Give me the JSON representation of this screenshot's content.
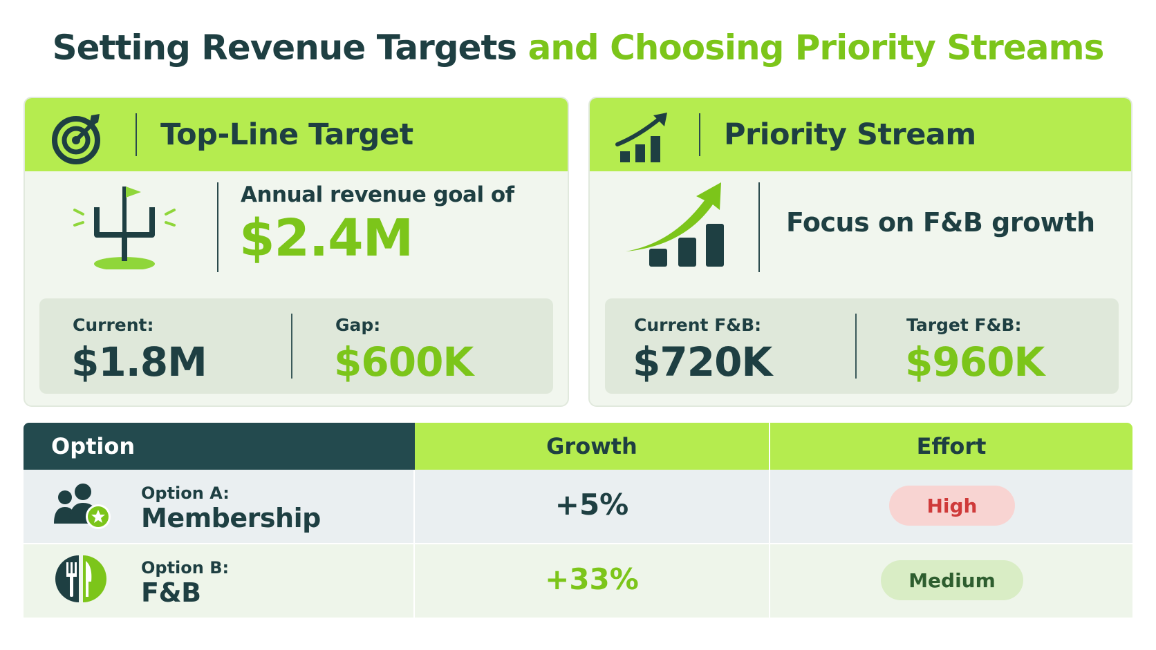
{
  "title": {
    "part1": "Setting Revenue Targets",
    "part2": "and Choosing Priority Streams"
  },
  "colors": {
    "dark": "#1e3f42",
    "accent_green": "#7cc51a",
    "header_green": "#b5ec4f",
    "high_red": "#cf3a3a"
  },
  "left_card": {
    "header": {
      "icon": "target-icon",
      "title": "Top-Line Target"
    },
    "hero_icon": "goalpost-icon",
    "goal_label": "Annual revenue goal of",
    "goal_value": "$2.4M",
    "stats": [
      {
        "label": "Current:",
        "value": "$1.8M"
      },
      {
        "label": "Gap:",
        "value": "$600K"
      }
    ]
  },
  "right_card": {
    "header": {
      "icon": "bar-chart-growth-icon",
      "title": "Priority Stream"
    },
    "hero_icon": "growth-arrow-chart-icon",
    "focus_text": "Focus on F&B growth",
    "stats": [
      {
        "label": "Current F&B:",
        "value": "$720K"
      },
      {
        "label": "Target F&B:",
        "value": "$960K"
      }
    ]
  },
  "table": {
    "headers": {
      "option": "Option",
      "growth": "Growth",
      "effort": "Effort"
    },
    "rows": [
      {
        "icon": "membership-group-icon",
        "option_prefix": "Option A:",
        "option_name": "Membership",
        "growth": "+5%",
        "effort": "High"
      },
      {
        "icon": "fork-knife-icon",
        "option_prefix": "Option B:",
        "option_name": "F&B",
        "growth": "+33%",
        "effort": "Medium"
      }
    ]
  }
}
